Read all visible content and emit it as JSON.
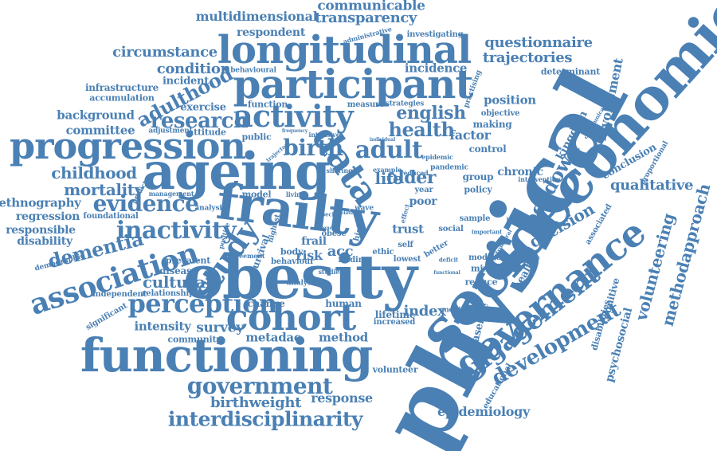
{
  "colors": {
    "word": "#4a80b4",
    "background": "#ffffff"
  },
  "words": [
    {
      "text": "physical",
      "size": 116,
      "rot": -62
    },
    {
      "text": "socioeconomic",
      "size": 72,
      "rot": -48
    },
    {
      "text": "obesity",
      "size": 76,
      "rot": 0
    },
    {
      "text": "ageing",
      "size": 64,
      "rot": 0
    },
    {
      "text": "frailty",
      "size": 62,
      "rot": 7
    },
    {
      "text": "functioning",
      "size": 58,
      "rot": 0
    },
    {
      "text": "participant",
      "size": 50,
      "rot": 0
    },
    {
      "text": "longitudinal",
      "size": 48,
      "rot": 0
    },
    {
      "text": "progression",
      "size": 46,
      "rot": 0
    },
    {
      "text": "cohort",
      "size": 46,
      "rot": 0
    },
    {
      "text": "governance",
      "size": 46,
      "rot": -38
    },
    {
      "text": "activity",
      "size": 38,
      "rot": 0
    },
    {
      "text": "data",
      "size": 46,
      "rot": 55
    },
    {
      "text": "association",
      "size": 36,
      "rot": -18
    },
    {
      "text": "engagement",
      "size": 32,
      "rot": -38
    },
    {
      "text": "perception",
      "size": 32,
      "rot": 0
    },
    {
      "text": "study",
      "size": 38,
      "rot": -55
    },
    {
      "text": "inactivity",
      "size": 30,
      "rot": 0
    },
    {
      "text": "government",
      "size": 28,
      "rot": 0
    },
    {
      "text": "interdisciplinarity",
      "size": 25,
      "rot": 0
    },
    {
      "text": "evidence",
      "size": 28,
      "rot": 0
    },
    {
      "text": "adult",
      "size": 30,
      "rot": 0
    },
    {
      "text": "birth",
      "size": 28,
      "rot": 0
    },
    {
      "text": "research",
      "size": 26,
      "rot": 0
    },
    {
      "text": "adulthood",
      "size": 24,
      "rot": -28
    },
    {
      "text": "development",
      "size": 26,
      "rot": -30
    },
    {
      "text": "lockdown",
      "size": 24,
      "rot": -60
    },
    {
      "text": "dementia",
      "size": 24,
      "rot": -14
    },
    {
      "text": "health",
      "size": 24,
      "rot": 0
    },
    {
      "text": "english",
      "size": 22,
      "rot": 0
    },
    {
      "text": "older",
      "size": 22,
      "rot": 0
    },
    {
      "text": "life",
      "size": 20,
      "rot": 0
    },
    {
      "text": "cultural",
      "size": 20,
      "rot": 0
    },
    {
      "text": "mortality",
      "size": 20,
      "rot": 0
    },
    {
      "text": "childhood",
      "size": 20,
      "rot": 0
    },
    {
      "text": "methodapproach",
      "size": 20,
      "rot": -75
    },
    {
      "text": "volunteering",
      "size": 20,
      "rot": -75
    },
    {
      "text": "qualitative",
      "size": 18,
      "rot": 0
    },
    {
      "text": "questionnaire",
      "size": 18,
      "rot": 0
    },
    {
      "text": "trajectories",
      "size": 18,
      "rot": 0
    },
    {
      "text": "circumstance",
      "size": 18,
      "rot": 0
    },
    {
      "text": "condition",
      "size": 18,
      "rot": 0
    },
    {
      "text": "transparency",
      "size": 18,
      "rot": 0
    },
    {
      "text": "communicable",
      "size": 17,
      "rot": 0
    },
    {
      "text": "multidimensional",
      "size": 16,
      "rot": 0
    },
    {
      "text": "birthweight",
      "size": 18,
      "rot": 0
    },
    {
      "text": "response",
      "size": 16,
      "rot": 0
    },
    {
      "text": "epidemiology",
      "size": 16,
      "rot": 0
    },
    {
      "text": "intensity",
      "size": 15,
      "rot": 0
    },
    {
      "text": "survey",
      "size": 17,
      "rot": 0
    },
    {
      "text": "metadac",
      "size": 15,
      "rot": 0
    },
    {
      "text": "method",
      "size": 15,
      "rot": 0
    },
    {
      "text": "index",
      "size": 18,
      "rot": 0
    },
    {
      "text": "decision",
      "size": 20,
      "rot": -30
    },
    {
      "text": "involvement",
      "size": 16,
      "rot": -78
    },
    {
      "text": "kingdom",
      "size": 14,
      "rot": -62
    },
    {
      "text": "background",
      "size": 15,
      "rot": 0
    },
    {
      "text": "committee",
      "size": 15,
      "rot": 0
    },
    {
      "text": "ethnography",
      "size": 15,
      "rot": 0
    },
    {
      "text": "regression",
      "size": 14,
      "rot": 0
    },
    {
      "text": "responsible",
      "size": 14,
      "rot": 0
    },
    {
      "text": "disability",
      "size": 14,
      "rot": 0
    },
    {
      "text": "infrastructure",
      "size": 12,
      "rot": 0
    },
    {
      "text": "accumulation",
      "size": 11,
      "rot": 0
    },
    {
      "text": "incident",
      "size": 13,
      "rot": 0
    },
    {
      "text": "exercise",
      "size": 13,
      "rot": 0
    },
    {
      "text": "incidence",
      "size": 15,
      "rot": 0
    },
    {
      "text": "position",
      "size": 15,
      "rot": 0
    },
    {
      "text": "factor",
      "size": 16,
      "rot": 0
    },
    {
      "text": "chronic",
      "size": 14,
      "rot": 0
    },
    {
      "text": "trust",
      "size": 15,
      "rot": 0
    },
    {
      "text": "poor",
      "size": 14,
      "rot": 0
    },
    {
      "text": "risk",
      "size": 16,
      "rot": 0
    },
    {
      "text": "frail",
      "size": 14,
      "rot": 0
    },
    {
      "text": "acc",
      "size": 18,
      "rot": 0
    },
    {
      "text": "respondent",
      "size": 14,
      "rot": 0
    },
    {
      "text": "determinant",
      "size": 11,
      "rot": 0
    },
    {
      "text": "conclusion",
      "size": 13,
      "rot": -30
    },
    {
      "text": "healthy",
      "size": 13,
      "rot": -60
    },
    {
      "text": "baseline",
      "size": 13,
      "rot": -75
    },
    {
      "text": "psychosocial",
      "size": 14,
      "rot": -75
    },
    {
      "text": "cognitive",
      "size": 12,
      "rot": -75
    },
    {
      "text": "disabilities",
      "size": 11,
      "rot": -75
    },
    {
      "text": "community",
      "size": 11,
      "rot": 0
    },
    {
      "text": "volunteer",
      "size": 11,
      "rot": 0
    },
    {
      "text": "change",
      "size": 12,
      "rot": 0
    },
    {
      "text": "human",
      "size": 12,
      "rot": 0
    },
    {
      "text": "lifetime",
      "size": 12,
      "rot": 0
    },
    {
      "text": "increased",
      "size": 10,
      "rot": 0
    },
    {
      "text": "disease",
      "size": 12,
      "rot": 0
    },
    {
      "text": "prevalent",
      "size": 11,
      "rot": 0
    },
    {
      "text": "relationship",
      "size": 10,
      "rot": 0
    },
    {
      "text": "independent",
      "size": 10,
      "rot": 0
    },
    {
      "text": "significant",
      "size": 10,
      "rot": -30
    },
    {
      "text": "demographic",
      "size": 9,
      "rot": -15
    },
    {
      "text": "foundational",
      "size": 10,
      "rot": 0
    },
    {
      "text": "reduce",
      "size": 11,
      "rot": 0
    },
    {
      "text": "mixed",
      "size": 11,
      "rot": 0
    },
    {
      "text": "moderate",
      "size": 10,
      "rot": 0
    },
    {
      "text": "lowest",
      "size": 10,
      "rot": 0
    },
    {
      "text": "sample",
      "size": 10,
      "rot": 0
    },
    {
      "text": "educational",
      "size": 10,
      "rot": -60
    },
    {
      "text": "policy",
      "size": 11,
      "rot": 0
    },
    {
      "text": "group",
      "size": 12,
      "rot": 0
    },
    {
      "text": "making",
      "size": 12,
      "rot": 0
    },
    {
      "text": "control",
      "size": 12,
      "rot": 0
    },
    {
      "text": "objective",
      "size": 10,
      "rot": 0
    },
    {
      "text": "attitude",
      "size": 11,
      "rot": 0
    },
    {
      "text": "adjustment",
      "size": 9,
      "rot": 0
    },
    {
      "text": "public",
      "size": 11,
      "rot": 0
    },
    {
      "text": "function",
      "size": 11,
      "rot": 0
    },
    {
      "text": "measure",
      "size": 10,
      "rot": 0
    },
    {
      "text": "strategies",
      "size": 9,
      "rot": 0
    },
    {
      "text": "behavioural",
      "size": 9,
      "rot": 0
    },
    {
      "text": "administrative",
      "size": 8,
      "rot": -15
    },
    {
      "text": "investigating",
      "size": 10,
      "rot": 0
    },
    {
      "text": "practising",
      "size": 9,
      "rot": -70
    },
    {
      "text": "communication",
      "size": 7,
      "rot": -60
    },
    {
      "text": "intervention",
      "size": 8,
      "rot": 0
    },
    {
      "text": "proportional",
      "size": 9,
      "rot": -60
    },
    {
      "text": "associated",
      "size": 10,
      "rot": -60
    },
    {
      "text": "pandemic",
      "size": 9,
      "rot": 0
    },
    {
      "text": "reduced",
      "size": 8,
      "rot": 0
    },
    {
      "text": "year",
      "size": 10,
      "rot": 0
    },
    {
      "text": "self",
      "size": 10,
      "rot": 0
    },
    {
      "text": "social",
      "size": 10,
      "rot": 0
    },
    {
      "text": "better",
      "size": 10,
      "rot": -30
    },
    {
      "text": "model",
      "size": 11,
      "rot": 0
    },
    {
      "text": "body",
      "size": 11,
      "rot": 0
    },
    {
      "text": "obese",
      "size": 10,
      "rot": 0
    },
    {
      "text": "behaviour",
      "size": 10,
      "rot": 0
    },
    {
      "text": "finding",
      "size": 10,
      "rot": 0
    },
    {
      "text": "ethic",
      "size": 10,
      "rot": 0
    },
    {
      "text": "survival",
      "size": 12,
      "rot": -70
    },
    {
      "text": "agreement",
      "size": 8,
      "rot": 0
    },
    {
      "text": "analysis",
      "size": 9,
      "rot": 0
    },
    {
      "text": "management",
      "size": 8,
      "rot": 0
    },
    {
      "text": "predictor",
      "size": 8,
      "rot": -60
    },
    {
      "text": "highest",
      "size": 9,
      "rot": -75
    },
    {
      "text": "intensive",
      "size": 8,
      "rot": 0
    },
    {
      "text": "example",
      "size": 8,
      "rot": 0
    },
    {
      "text": "epidemic",
      "size": 8,
      "rot": 0
    },
    {
      "text": "mediating",
      "size": 9,
      "rot": 0
    },
    {
      "text": "analyse",
      "size": 9,
      "rot": 0
    },
    {
      "text": "positive",
      "size": 8,
      "rot": -75
    },
    {
      "text": "studies",
      "size": 8,
      "rot": 0
    },
    {
      "text": "inequalities",
      "size": 7,
      "rot": 0
    },
    {
      "text": "structural",
      "size": 7,
      "rot": -60
    },
    {
      "text": "important",
      "size": 7,
      "rot": 0
    },
    {
      "text": "living",
      "size": 8,
      "rot": 0
    },
    {
      "text": "sharing",
      "size": 8,
      "rot": 0
    },
    {
      "text": "specific",
      "size": 7,
      "rot": 0
    },
    {
      "text": "individual",
      "size": 6,
      "rot": 0
    },
    {
      "text": "frequency",
      "size": 6,
      "rot": 0
    },
    {
      "text": "trajectory",
      "size": 7,
      "rot": -40
    },
    {
      "text": "high",
      "size": 10,
      "rot": -75
    },
    {
      "text": "wave",
      "size": 9,
      "rot": 0
    },
    {
      "text": "gender",
      "size": 6,
      "rot": 0
    },
    {
      "text": "related",
      "size": 6,
      "rot": 0
    },
    {
      "text": "effect",
      "size": 8,
      "rot": -75
    },
    {
      "text": "deficit",
      "size": 7,
      "rot": 0
    },
    {
      "text": "functional",
      "size": 6,
      "rot": 0
    }
  ]
}
